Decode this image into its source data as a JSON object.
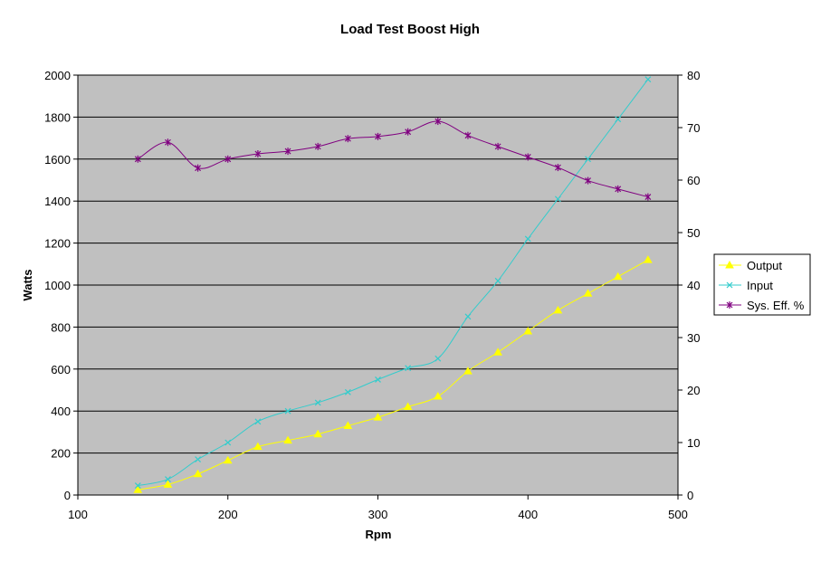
{
  "chart_data": {
    "type": "line",
    "title": "Load Test Boost High",
    "xlabel": "Rpm",
    "ylabel": "Watts",
    "y2label": "",
    "xlim": [
      100,
      500
    ],
    "ylim": [
      0,
      2000
    ],
    "y2lim": [
      0,
      80
    ],
    "xticks": [
      100,
      200,
      300,
      400,
      500
    ],
    "yticks": [
      0,
      200,
      400,
      600,
      800,
      1000,
      1200,
      1400,
      1600,
      1800,
      2000
    ],
    "y2ticks": [
      0,
      10,
      20,
      30,
      40,
      50,
      60,
      70,
      80
    ],
    "grid": true,
    "legend_position": "right",
    "series": [
      {
        "name": "Output",
        "axis": "left",
        "marker": "triangle",
        "color": "#FFFF00",
        "x": [
          140,
          160,
          180,
          200,
          220,
          240,
          260,
          280,
          300,
          320,
          340,
          360,
          380,
          400,
          420,
          440,
          460,
          480
        ],
        "values": [
          25,
          50,
          100,
          165,
          230,
          260,
          290,
          330,
          370,
          420,
          470,
          590,
          680,
          780,
          880,
          960,
          1040,
          1120
        ]
      },
      {
        "name": "Input",
        "axis": "left",
        "marker": "x",
        "color": "#33CCCC",
        "x": [
          140,
          160,
          180,
          200,
          220,
          240,
          260,
          280,
          300,
          320,
          340,
          360,
          380,
          400,
          420,
          440,
          460,
          480
        ],
        "values": [
          45,
          75,
          170,
          250,
          350,
          400,
          440,
          490,
          550,
          605,
          650,
          850,
          1020,
          1220,
          1410,
          1600,
          1790,
          1980
        ]
      },
      {
        "name": "Sys. Eff. %",
        "axis": "right",
        "marker": "star",
        "color": "#800080",
        "x": [
          140,
          160,
          180,
          200,
          220,
          240,
          260,
          280,
          300,
          320,
          340,
          360,
          380,
          400,
          420,
          440,
          460,
          480
        ],
        "values": [
          64,
          67.2,
          62.3,
          64,
          65,
          65.5,
          66.4,
          67.9,
          68.3,
          69.2,
          71.2,
          68.5,
          66.4,
          64.4,
          62.4,
          59.9,
          58.3,
          56.8
        ]
      }
    ],
    "colors": {
      "plot_background": "#C0C0C0",
      "gridline": "#000000"
    }
  }
}
